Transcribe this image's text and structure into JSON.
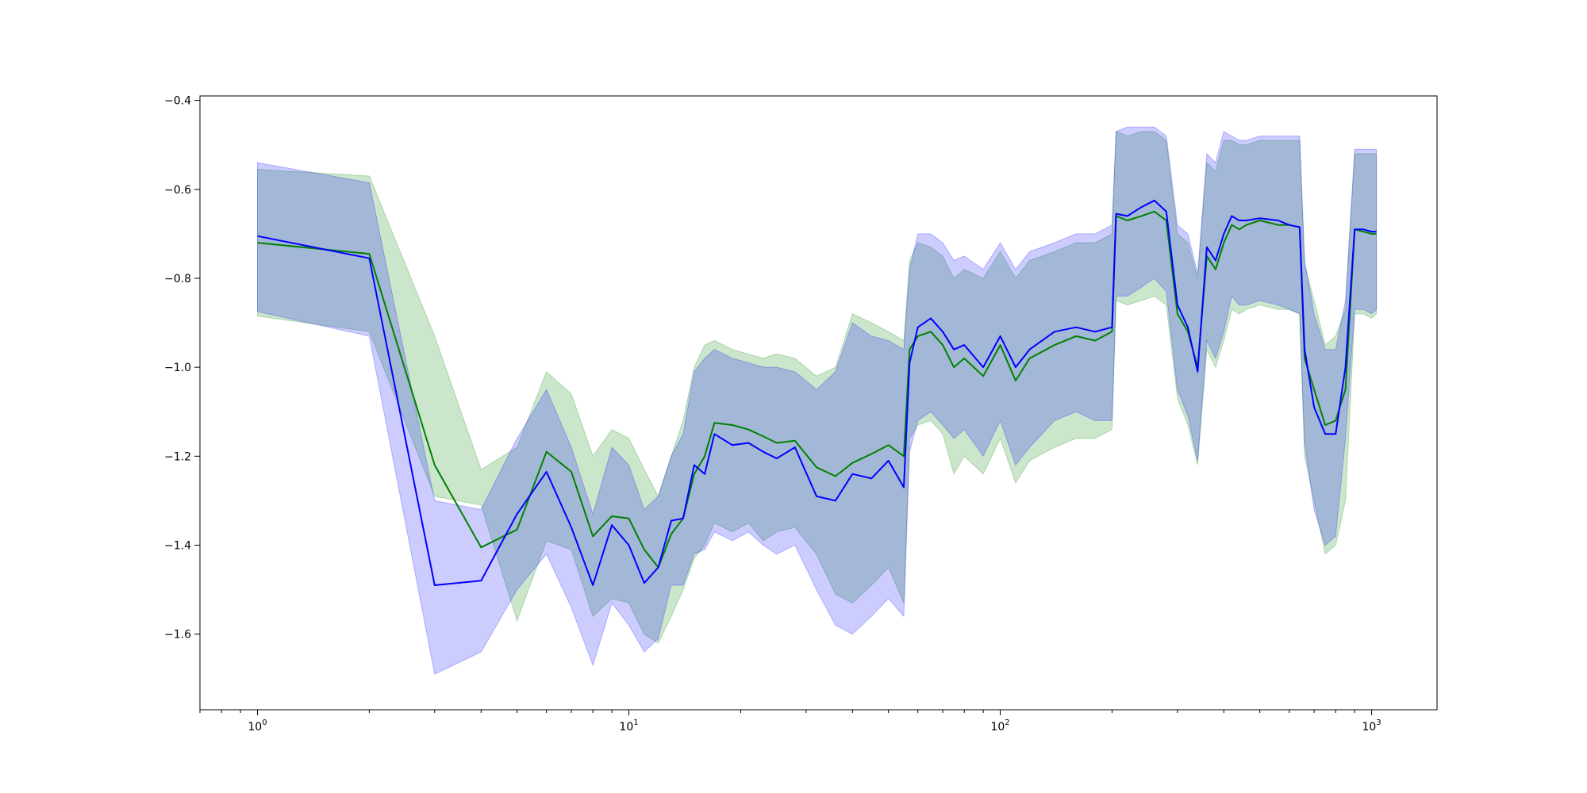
{
  "chart_data": {
    "type": "line",
    "title": "",
    "xlabel": "",
    "ylabel": "",
    "xscale": "log",
    "xlim": [
      0.7,
      1500
    ],
    "ylim": [
      -1.77,
      -0.39
    ],
    "grid": false,
    "legend": "none",
    "yticks": [
      -1.6,
      -1.4,
      -1.2,
      -1.0,
      -0.8,
      -0.6,
      -0.4
    ],
    "ytick_labels": [
      "−1.6",
      "−1.4",
      "−1.2",
      "−1.0",
      "−0.8",
      "−0.6",
      "−0.4"
    ],
    "xticks": [
      1,
      10,
      100,
      1000
    ],
    "xtick_labels": [
      {
        "base": "10",
        "exp": "0"
      },
      {
        "base": "10",
        "exp": "1"
      },
      {
        "base": "10",
        "exp": "2"
      },
      {
        "base": "10",
        "exp": "3"
      }
    ],
    "series": [
      {
        "color": "#008000",
        "band_color": "#008000",
        "band_opacity": 0.2,
        "x": [
          1,
          2,
          3,
          4,
          5,
          6,
          7,
          8,
          9,
          10,
          11,
          12,
          13,
          14,
          15,
          16,
          17,
          19,
          21,
          23,
          25,
          28,
          32,
          36,
          40,
          45,
          50,
          55,
          57,
          60,
          65,
          70,
          75,
          80,
          90,
          100,
          110,
          120,
          140,
          160,
          180,
          200,
          205,
          220,
          240,
          260,
          280,
          300,
          320,
          340,
          360,
          380,
          400,
          420,
          440,
          460,
          500,
          560,
          600,
          640,
          660,
          700,
          750,
          800,
          850,
          900,
          950,
          1000,
          1030
        ],
        "mean": [
          -0.72,
          -0.745,
          -1.22,
          -1.405,
          -1.365,
          -1.19,
          -1.235,
          -1.38,
          -1.335,
          -1.34,
          -1.41,
          -1.45,
          -1.375,
          -1.34,
          -1.24,
          -1.2,
          -1.125,
          -1.13,
          -1.14,
          -1.155,
          -1.17,
          -1.165,
          -1.225,
          -1.245,
          -1.215,
          -1.195,
          -1.175,
          -1.2,
          -0.96,
          -0.93,
          -0.92,
          -0.95,
          -1.0,
          -0.98,
          -1.02,
          -0.95,
          -1.03,
          -0.98,
          -0.95,
          -0.93,
          -0.94,
          -0.92,
          -0.66,
          -0.67,
          -0.66,
          -0.65,
          -0.67,
          -0.88,
          -0.92,
          -1.0,
          -0.75,
          -0.78,
          -0.72,
          -0.68,
          -0.69,
          -0.68,
          -0.67,
          -0.68,
          -0.68,
          -0.685,
          -0.98,
          -1.05,
          -1.13,
          -1.12,
          -1.05,
          -0.69,
          -0.695,
          -0.7,
          -0.7
        ],
        "upper": [
          -0.555,
          -0.57,
          -0.93,
          -1.23,
          -1.18,
          -1.01,
          -1.06,
          -1.2,
          -1.14,
          -1.16,
          -1.23,
          -1.29,
          -1.2,
          -1.12,
          -1.0,
          -0.95,
          -0.94,
          -0.96,
          -0.97,
          -0.98,
          -0.97,
          -0.98,
          -1.02,
          -1.0,
          -0.88,
          -0.9,
          -0.92,
          -0.94,
          -0.76,
          -0.72,
          -0.73,
          -0.75,
          -0.8,
          -0.78,
          -0.8,
          -0.74,
          -0.8,
          -0.76,
          -0.74,
          -0.72,
          -0.72,
          -0.7,
          -0.47,
          -0.48,
          -0.47,
          -0.47,
          -0.49,
          -0.7,
          -0.72,
          -0.8,
          -0.54,
          -0.56,
          -0.49,
          -0.49,
          -0.5,
          -0.5,
          -0.49,
          -0.49,
          -0.49,
          -0.49,
          -0.77,
          -0.85,
          -0.95,
          -0.93,
          -0.87,
          -0.52,
          -0.52,
          -0.52,
          -0.52
        ],
        "lower": [
          -0.885,
          -0.92,
          -1.29,
          -1.31,
          -1.57,
          -1.39,
          -1.41,
          -1.56,
          -1.52,
          -1.53,
          -1.6,
          -1.62,
          -1.56,
          -1.5,
          -1.43,
          -1.4,
          -1.35,
          -1.37,
          -1.35,
          -1.39,
          -1.37,
          -1.36,
          -1.42,
          -1.51,
          -1.53,
          -1.49,
          -1.45,
          -1.53,
          -1.16,
          -1.13,
          -1.12,
          -1.15,
          -1.24,
          -1.2,
          -1.24,
          -1.16,
          -1.26,
          -1.21,
          -1.18,
          -1.16,
          -1.16,
          -1.14,
          -0.85,
          -0.86,
          -0.85,
          -0.84,
          -0.86,
          -1.07,
          -1.13,
          -1.22,
          -0.96,
          -1.0,
          -0.94,
          -0.87,
          -0.88,
          -0.87,
          -0.86,
          -0.87,
          -0.87,
          -0.88,
          -1.2,
          -1.3,
          -1.42,
          -1.4,
          -1.3,
          -0.88,
          -0.88,
          -0.89,
          -0.88
        ]
      },
      {
        "color": "#0000ff",
        "band_color": "#0000ff",
        "band_opacity": 0.2,
        "x": [
          1,
          2,
          3,
          4,
          5,
          6,
          7,
          8,
          9,
          10,
          11,
          12,
          13,
          14,
          15,
          16,
          17,
          19,
          21,
          23,
          25,
          28,
          32,
          36,
          40,
          45,
          50,
          55,
          57,
          60,
          65,
          70,
          75,
          80,
          90,
          100,
          110,
          120,
          140,
          160,
          180,
          200,
          205,
          220,
          240,
          260,
          280,
          300,
          320,
          340,
          360,
          380,
          400,
          420,
          440,
          460,
          500,
          560,
          600,
          640,
          660,
          700,
          750,
          800,
          850,
          900,
          950,
          1000,
          1030
        ],
        "mean": [
          -0.705,
          -0.755,
          -1.49,
          -1.48,
          -1.33,
          -1.235,
          -1.36,
          -1.49,
          -1.355,
          -1.4,
          -1.485,
          -1.45,
          -1.345,
          -1.34,
          -1.22,
          -1.24,
          -1.15,
          -1.175,
          -1.17,
          -1.19,
          -1.205,
          -1.18,
          -1.29,
          -1.3,
          -1.24,
          -1.25,
          -1.21,
          -1.27,
          -0.99,
          -0.91,
          -0.89,
          -0.92,
          -0.96,
          -0.95,
          -1.0,
          -0.93,
          -1.0,
          -0.96,
          -0.92,
          -0.91,
          -0.92,
          -0.91,
          -0.655,
          -0.66,
          -0.64,
          -0.625,
          -0.65,
          -0.86,
          -0.91,
          -1.01,
          -0.73,
          -0.76,
          -0.7,
          -0.66,
          -0.67,
          -0.67,
          -0.665,
          -0.67,
          -0.68,
          -0.685,
          -0.96,
          -1.09,
          -1.15,
          -1.15,
          -1.0,
          -0.69,
          -0.69,
          -0.695,
          -0.695
        ],
        "upper": [
          -0.54,
          -0.585,
          -1.3,
          -1.32,
          -1.16,
          -1.05,
          -1.18,
          -1.33,
          -1.18,
          -1.22,
          -1.32,
          -1.29,
          -1.2,
          -1.15,
          -1.01,
          -0.98,
          -0.96,
          -0.98,
          -0.99,
          -1.0,
          -1.0,
          -1.01,
          -1.05,
          -1.01,
          -0.9,
          -0.93,
          -0.94,
          -0.96,
          -0.78,
          -0.7,
          -0.7,
          -0.72,
          -0.76,
          -0.75,
          -0.78,
          -0.72,
          -0.78,
          -0.74,
          -0.72,
          -0.7,
          -0.7,
          -0.68,
          -0.47,
          -0.46,
          -0.46,
          -0.46,
          -0.48,
          -0.68,
          -0.7,
          -0.79,
          -0.52,
          -0.54,
          -0.47,
          -0.48,
          -0.49,
          -0.49,
          -0.48,
          -0.48,
          -0.48,
          -0.48,
          -0.76,
          -0.88,
          -0.96,
          -0.96,
          -0.85,
          -0.51,
          -0.51,
          -0.51,
          -0.51
        ],
        "lower": [
          -0.875,
          -0.93,
          -1.69,
          -1.64,
          -1.5,
          -1.42,
          -1.54,
          -1.67,
          -1.53,
          -1.58,
          -1.64,
          -1.61,
          -1.49,
          -1.49,
          -1.42,
          -1.41,
          -1.37,
          -1.39,
          -1.37,
          -1.4,
          -1.42,
          -1.4,
          -1.5,
          -1.58,
          -1.6,
          -1.56,
          -1.52,
          -1.56,
          -1.19,
          -1.12,
          -1.1,
          -1.13,
          -1.16,
          -1.14,
          -1.2,
          -1.12,
          -1.22,
          -1.18,
          -1.12,
          -1.1,
          -1.12,
          -1.12,
          -0.84,
          -0.84,
          -0.82,
          -0.8,
          -0.83,
          -1.05,
          -1.11,
          -1.21,
          -0.94,
          -0.98,
          -0.92,
          -0.84,
          -0.86,
          -0.86,
          -0.85,
          -0.86,
          -0.87,
          -0.88,
          -1.17,
          -1.32,
          -1.4,
          -1.38,
          -1.16,
          -0.87,
          -0.87,
          -0.88,
          -0.87
        ]
      }
    ]
  }
}
